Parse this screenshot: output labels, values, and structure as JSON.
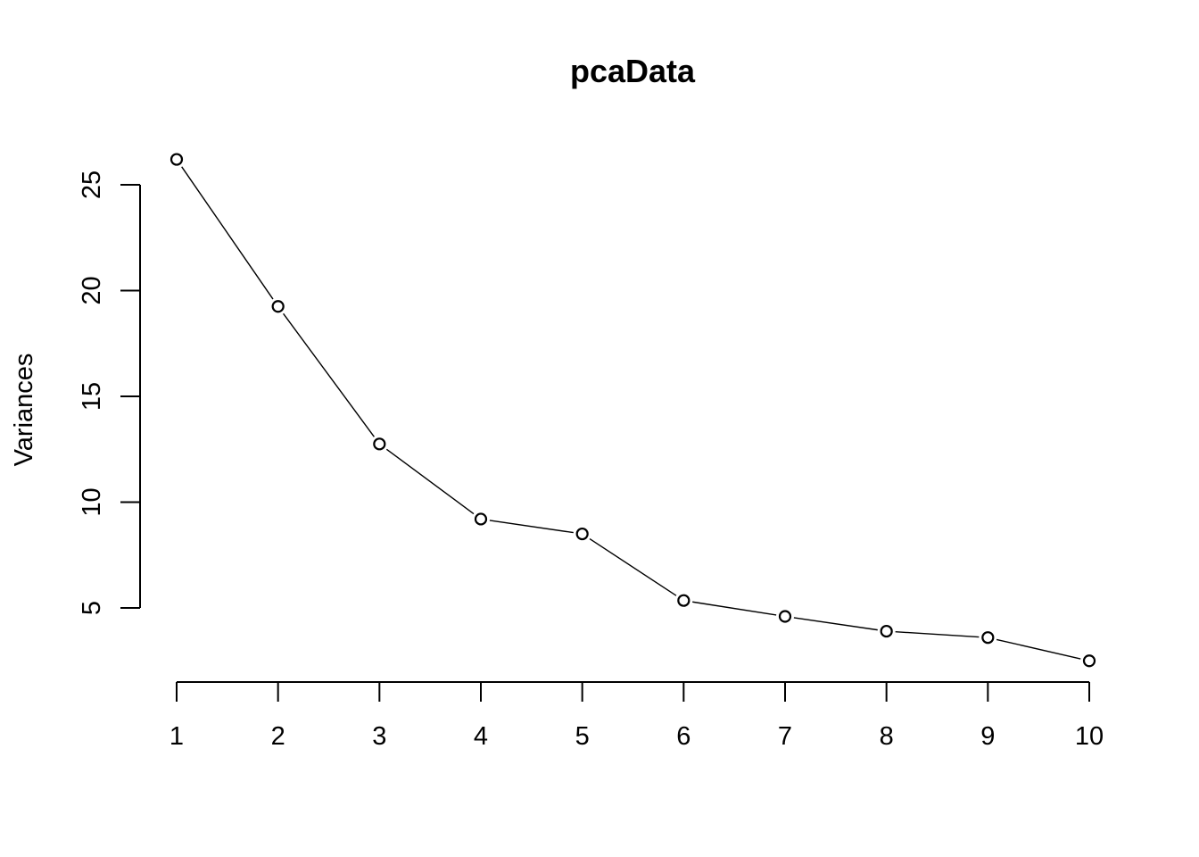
{
  "chart_data": {
    "type": "line",
    "title": "pcaData",
    "xlabel": "",
    "ylabel": "Variances",
    "x": [
      1,
      2,
      3,
      4,
      5,
      6,
      7,
      8,
      9,
      10
    ],
    "series": [
      {
        "values": [
          26.2,
          19.25,
          12.75,
          9.2,
          8.5,
          5.35,
          4.6,
          3.9,
          3.6,
          2.5
        ]
      }
    ],
    "x_ticks": [
      "1",
      "2",
      "3",
      "4",
      "5",
      "6",
      "7",
      "8",
      "9",
      "10"
    ],
    "y_ticks": [
      "5",
      "10",
      "15",
      "20",
      "25"
    ],
    "xlim": [
      1,
      10
    ],
    "ylim": [
      5,
      25
    ],
    "grid": false,
    "marker": "open-circle",
    "colors": {
      "line": "#000000",
      "marker_fill": "#ffffff",
      "background": "#ffffff"
    }
  }
}
